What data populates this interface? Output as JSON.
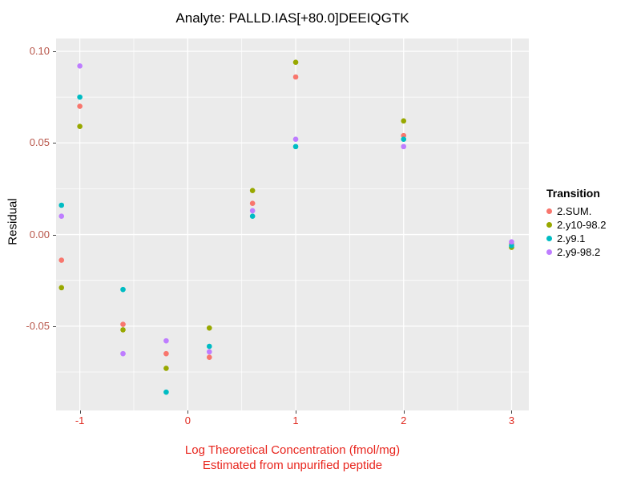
{
  "title": "Analyte: PALLD.IAS[+80.0]DEEIQGTK",
  "y_axis": {
    "label": "Residual",
    "tick_labels": [
      "0.10",
      "0.05",
      "0.00",
      "-0.05"
    ],
    "tick_values": [
      0.1,
      0.05,
      0.0,
      -0.05
    ],
    "minor_values": [
      0.075,
      0.025,
      -0.025,
      -0.075
    ],
    "tick_color": "#B8564A"
  },
  "x_axis": {
    "label_line1": "Log Theoretical Concentration (fmol/mg)",
    "label_line2": "Estimated from unpurified peptide",
    "label_color": "#E8251D",
    "tick_labels": [
      "-1",
      "0",
      "1",
      "2",
      "3"
    ],
    "tick_values": [
      -1,
      0,
      1,
      2,
      3
    ],
    "minor_values": [
      -0.5,
      0.5,
      1.5,
      2.5
    ],
    "tick_color": "#E02A20"
  },
  "legend": {
    "title": "Transition",
    "items": [
      {
        "label": "2.SUM.",
        "color": "#F8766D"
      },
      {
        "label": "2.y10-98.2",
        "color": "#98A800"
      },
      {
        "label": "2.y9.1",
        "color": "#00BCC3"
      },
      {
        "label": "2.y9-98.2",
        "color": "#BE7DFF"
      }
    ]
  },
  "theme": {
    "panel_bg": "#EBEBEB",
    "grid": "#FFFFFF",
    "title_color": "#000000",
    "axis_label_color": "#000000"
  },
  "chart_data": {
    "type": "scatter",
    "title": "Analyte: PALLD.IAS[+80.0]DEEIQGTK",
    "xlabel": "Log Theoretical Concentration (fmol/mg) — Estimated from unpurified peptide",
    "ylabel": "Residual",
    "xlim": [
      -1.22,
      3.16
    ],
    "ylim": [
      -0.096,
      0.107
    ],
    "grid": true,
    "legend_position": "right",
    "series": [
      {
        "name": "2.SUM.",
        "color": "#F8766D",
        "points": [
          [
            -1.17,
            -0.014
          ],
          [
            -1,
            0.07
          ],
          [
            -0.6,
            -0.049
          ],
          [
            -0.2,
            -0.065
          ],
          [
            0.2,
            -0.067
          ],
          [
            0.6,
            0.017
          ],
          [
            1,
            0.086
          ],
          [
            2,
            0.054
          ],
          [
            3,
            -0.005
          ]
        ]
      },
      {
        "name": "2.y10-98.2",
        "color": "#98A800",
        "points": [
          [
            -1.17,
            -0.029
          ],
          [
            -1,
            0.059
          ],
          [
            -0.6,
            -0.052
          ],
          [
            -0.2,
            -0.073
          ],
          [
            0.2,
            -0.051
          ],
          [
            0.6,
            0.024
          ],
          [
            1,
            0.094
          ],
          [
            2,
            0.062
          ],
          [
            3,
            -0.007
          ]
        ]
      },
      {
        "name": "2.y9.1",
        "color": "#00BCC3",
        "points": [
          [
            -1.17,
            0.016
          ],
          [
            -1,
            0.075
          ],
          [
            -0.6,
            -0.03
          ],
          [
            -0.2,
            -0.086
          ],
          [
            0.2,
            -0.061
          ],
          [
            0.6,
            0.01
          ],
          [
            1,
            0.048
          ],
          [
            2,
            0.052
          ],
          [
            3,
            -0.006
          ]
        ]
      },
      {
        "name": "2.y9-98.2",
        "color": "#BE7DFF",
        "points": [
          [
            -1.17,
            0.01
          ],
          [
            -1,
            0.092
          ],
          [
            -0.6,
            -0.065
          ],
          [
            -0.2,
            -0.058
          ],
          [
            0.2,
            -0.064
          ],
          [
            0.6,
            0.013
          ],
          [
            1,
            0.052
          ],
          [
            2,
            0.048
          ],
          [
            3,
            -0.004
          ]
        ]
      }
    ]
  }
}
